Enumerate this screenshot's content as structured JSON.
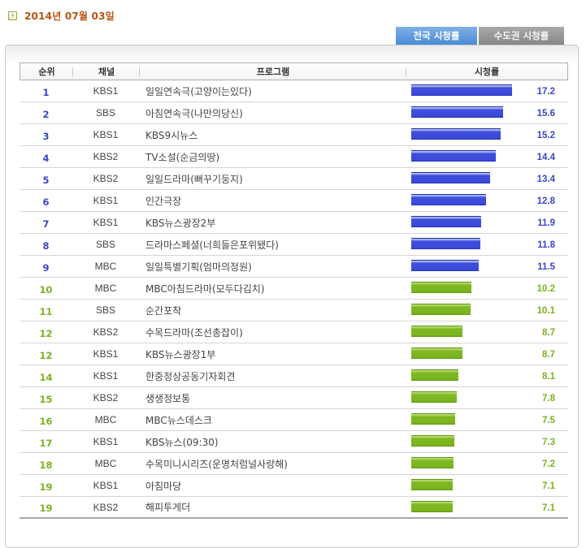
{
  "date": {
    "icon": "arrow-right-icon",
    "text": "2014년 07월 03일"
  },
  "tabs": [
    {
      "label": "전국 시청률",
      "active": true
    },
    {
      "label": "수도권 시청률",
      "active": false
    }
  ],
  "table": {
    "headers": {
      "rank": "순위",
      "channel": "채널",
      "program": "프로그램",
      "rating": "시청률"
    },
    "rows": [
      {
        "rank": "1",
        "channel": "KBS1",
        "program": "일일연속극(고양이는있다)",
        "rating": "17.2",
        "tier": "top"
      },
      {
        "rank": "2",
        "channel": "SBS",
        "program": "아침연속극(나만의당신)",
        "rating": "15.6",
        "tier": "top"
      },
      {
        "rank": "3",
        "channel": "KBS1",
        "program": "KBS9시뉴스",
        "rating": "15.2",
        "tier": "top"
      },
      {
        "rank": "4",
        "channel": "KBS2",
        "program": "TV소설(순금의땅)",
        "rating": "14.4",
        "tier": "top"
      },
      {
        "rank": "5",
        "channel": "KBS2",
        "program": "일일드라마(뻐꾸기둥지)",
        "rating": "13.4",
        "tier": "top"
      },
      {
        "rank": "6",
        "channel": "KBS1",
        "program": "인간극장",
        "rating": "12.8",
        "tier": "top"
      },
      {
        "rank": "7",
        "channel": "KBS1",
        "program": "KBS뉴스광장2부",
        "rating": "11.9",
        "tier": "top"
      },
      {
        "rank": "8",
        "channel": "SBS",
        "program": "드라마스페셜(너희들은포위됐다)",
        "rating": "11.8",
        "tier": "top"
      },
      {
        "rank": "9",
        "channel": "MBC",
        "program": "일일특별기획(엄마의정원)",
        "rating": "11.5",
        "tier": "top"
      },
      {
        "rank": "10",
        "channel": "MBC",
        "program": "MBC아침드라마(모두다김치)",
        "rating": "10.2",
        "tier": "rest"
      },
      {
        "rank": "11",
        "channel": "SBS",
        "program": "순간포착",
        "rating": "10.1",
        "tier": "rest"
      },
      {
        "rank": "12",
        "channel": "KBS2",
        "program": "수목드라마(조선총잡이)",
        "rating": "8.7",
        "tier": "rest"
      },
      {
        "rank": "12",
        "channel": "KBS1",
        "program": "KBS뉴스광장1부",
        "rating": "8.7",
        "tier": "rest"
      },
      {
        "rank": "14",
        "channel": "KBS1",
        "program": "한중정상공동기자회견",
        "rating": "8.1",
        "tier": "rest"
      },
      {
        "rank": "15",
        "channel": "KBS2",
        "program": "생생정보통",
        "rating": "7.8",
        "tier": "rest"
      },
      {
        "rank": "16",
        "channel": "MBC",
        "program": "MBC뉴스데스크",
        "rating": "7.5",
        "tier": "rest"
      },
      {
        "rank": "17",
        "channel": "KBS1",
        "program": "KBS뉴스(09:30)",
        "rating": "7.3",
        "tier": "rest"
      },
      {
        "rank": "18",
        "channel": "MBC",
        "program": "수목미니시리즈(운명처럼널사랑해)",
        "rating": "7.2",
        "tier": "rest"
      },
      {
        "rank": "19",
        "channel": "KBS1",
        "program": "아침마당",
        "rating": "7.1",
        "tier": "rest"
      },
      {
        "rank": "19",
        "channel": "KBS2",
        "program": "해피투게더",
        "rating": "7.1",
        "tier": "rest"
      }
    ]
  },
  "colors": {
    "date_text": "#b8520f",
    "top_tier_blue": "#3b46c9",
    "rest_tier_green": "#7cb222",
    "tab_active": "#5f99dc",
    "tab_inactive": "#959595"
  }
}
